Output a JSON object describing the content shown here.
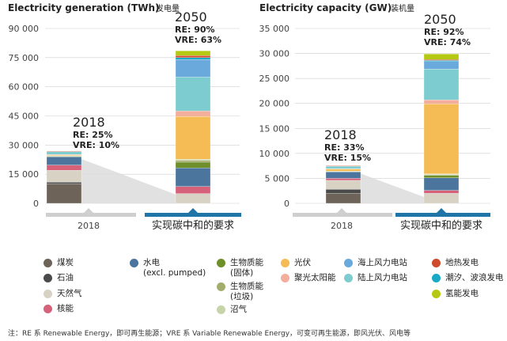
{
  "colors": {
    "coal": "#6e6358",
    "oil": "#4b4b4b",
    "gas": "#d8d2c4",
    "nuclear": "#d6627a",
    "hydro": "#4b759c",
    "biomass_solid": "#6f8f2a",
    "biomass_waste": "#a3ad6d",
    "biogas": "#c7d3a8",
    "solar_pv": "#f5bc55",
    "csp": "#f3ae9c",
    "offshore_wind": "#6aa9dc",
    "onshore_wind": "#7dcdd0",
    "geothermal": "#cf4a2b",
    "tidal_wave": "#1aa9c4",
    "hydrogen": "#b5c912",
    "grid": "#cfcfcf",
    "connector": "#dcdcdc",
    "bar_2018": "#cfcfcf",
    "bar_2050": "#1f74a8"
  },
  "chart_data": [
    {
      "type": "bar",
      "stacked": true,
      "title": "Electricity generation (TWh)",
      "title_cn": "发电量",
      "yticks": [
        "0",
        "15 000",
        "30 000",
        "45 000",
        "60 000",
        "75 000",
        "90 000"
      ],
      "ylim": [
        0,
        90000
      ],
      "grid": true,
      "categories": [
        "2018",
        "实现碳中和的要求"
      ],
      "annotations": [
        {
          "year": "2018",
          "re": "RE: 25%",
          "vre": "VRE: 10%"
        },
        {
          "year": "2050",
          "re": "RE: 90%",
          "vre": "VRE: 63%"
        }
      ],
      "series": [
        {
          "key": "coal",
          "values": [
            10000,
            0
          ]
        },
        {
          "key": "oil",
          "values": [
            900,
            0
          ]
        },
        {
          "key": "gas",
          "values": [
            6100,
            5000
          ]
        },
        {
          "key": "nuclear",
          "values": [
            2700,
            3700
          ]
        },
        {
          "key": "hydro",
          "values": [
            4200,
            9500
          ]
        },
        {
          "key": "biomass_solid",
          "values": [
            400,
            3000
          ]
        },
        {
          "key": "biomass_waste",
          "values": [
            100,
            900
          ]
        },
        {
          "key": "biogas",
          "values": [
            100,
            600
          ]
        },
        {
          "key": "solar_pv",
          "values": [
            600,
            22000
          ]
        },
        {
          "key": "csp",
          "values": [
            20,
            2800
          ]
        },
        {
          "key": "onshore_wind",
          "values": [
            1600,
            17500
          ]
        },
        {
          "key": "offshore_wind",
          "values": [
            80,
            9000
          ]
        },
        {
          "key": "tidal_wave",
          "values": [
            0,
            1000
          ]
        },
        {
          "key": "geothermal",
          "values": [
            90,
            1100
          ]
        },
        {
          "key": "hydrogen",
          "values": [
            0,
            2400
          ]
        }
      ]
    },
    {
      "type": "bar",
      "stacked": true,
      "title": "Electricity capacity (GW)",
      "title_cn": "装机量",
      "yticks": [
        "0",
        "5 000",
        "10 000",
        "15 000",
        "20 000",
        "25 000",
        "30 000",
        "35 000"
      ],
      "ylim": [
        0,
        35000
      ],
      "grid": true,
      "categories": [
        "2018",
        "实现碳中和的要求"
      ],
      "annotations": [
        {
          "year": "2018",
          "re": "RE: 33%",
          "vre": "VRE: 15%"
        },
        {
          "year": "2050",
          "re": "RE: 92%",
          "vre": "VRE: 74%"
        }
      ],
      "series": [
        {
          "key": "coal",
          "values": [
            2000,
            0
          ]
        },
        {
          "key": "oil",
          "values": [
            800,
            0
          ]
        },
        {
          "key": "gas",
          "values": [
            1800,
            2000
          ]
        },
        {
          "key": "nuclear",
          "values": [
            400,
            600
          ]
        },
        {
          "key": "hydro",
          "values": [
            1300,
            2500
          ]
        },
        {
          "key": "biomass_solid",
          "values": [
            100,
            500
          ]
        },
        {
          "key": "biomass_waste",
          "values": [
            20,
            150
          ]
        },
        {
          "key": "biogas",
          "values": [
            20,
            150
          ]
        },
        {
          "key": "solar_pv",
          "values": [
            500,
            14000
          ]
        },
        {
          "key": "csp",
          "values": [
            10,
            800
          ]
        },
        {
          "key": "onshore_wind",
          "values": [
            550,
            6200
          ]
        },
        {
          "key": "offshore_wind",
          "values": [
            20,
            1500
          ]
        },
        {
          "key": "tidal_wave",
          "values": [
            0,
            200
          ]
        },
        {
          "key": "geothermal",
          "values": [
            15,
            200
          ]
        },
        {
          "key": "hydrogen",
          "values": [
            0,
            1100
          ]
        }
      ]
    }
  ],
  "legend": {
    "coal": {
      "label": "煤炭"
    },
    "oil": {
      "label": "石油"
    },
    "gas": {
      "label": "天然气"
    },
    "nuclear": {
      "label": "核能"
    },
    "hydro": {
      "label": "水电",
      "sub": "(excl. pumped)"
    },
    "biomass_solid": {
      "label": "生物质能",
      "sub": "(固体)"
    },
    "biomass_waste": {
      "label": "生物质能",
      "sub": "(垃圾)"
    },
    "biogas": {
      "label": "沼气"
    },
    "solar_pv": {
      "label": "光伏"
    },
    "csp": {
      "label": "聚光太阳能"
    },
    "offshore_wind": {
      "label": "海上风力电站"
    },
    "onshore_wind": {
      "label": "陆上风力电站"
    },
    "geothermal": {
      "label": "地热发电"
    },
    "tidal_wave": {
      "label": "潮汐、波浪发电"
    },
    "hydrogen": {
      "label": "氢能发电"
    }
  },
  "footnote": "注：RE 系 Renewable Energy，即可再生能源；VRE 系 Variable Renewable Energy，可变可再生能源，即风光伏、风电等"
}
